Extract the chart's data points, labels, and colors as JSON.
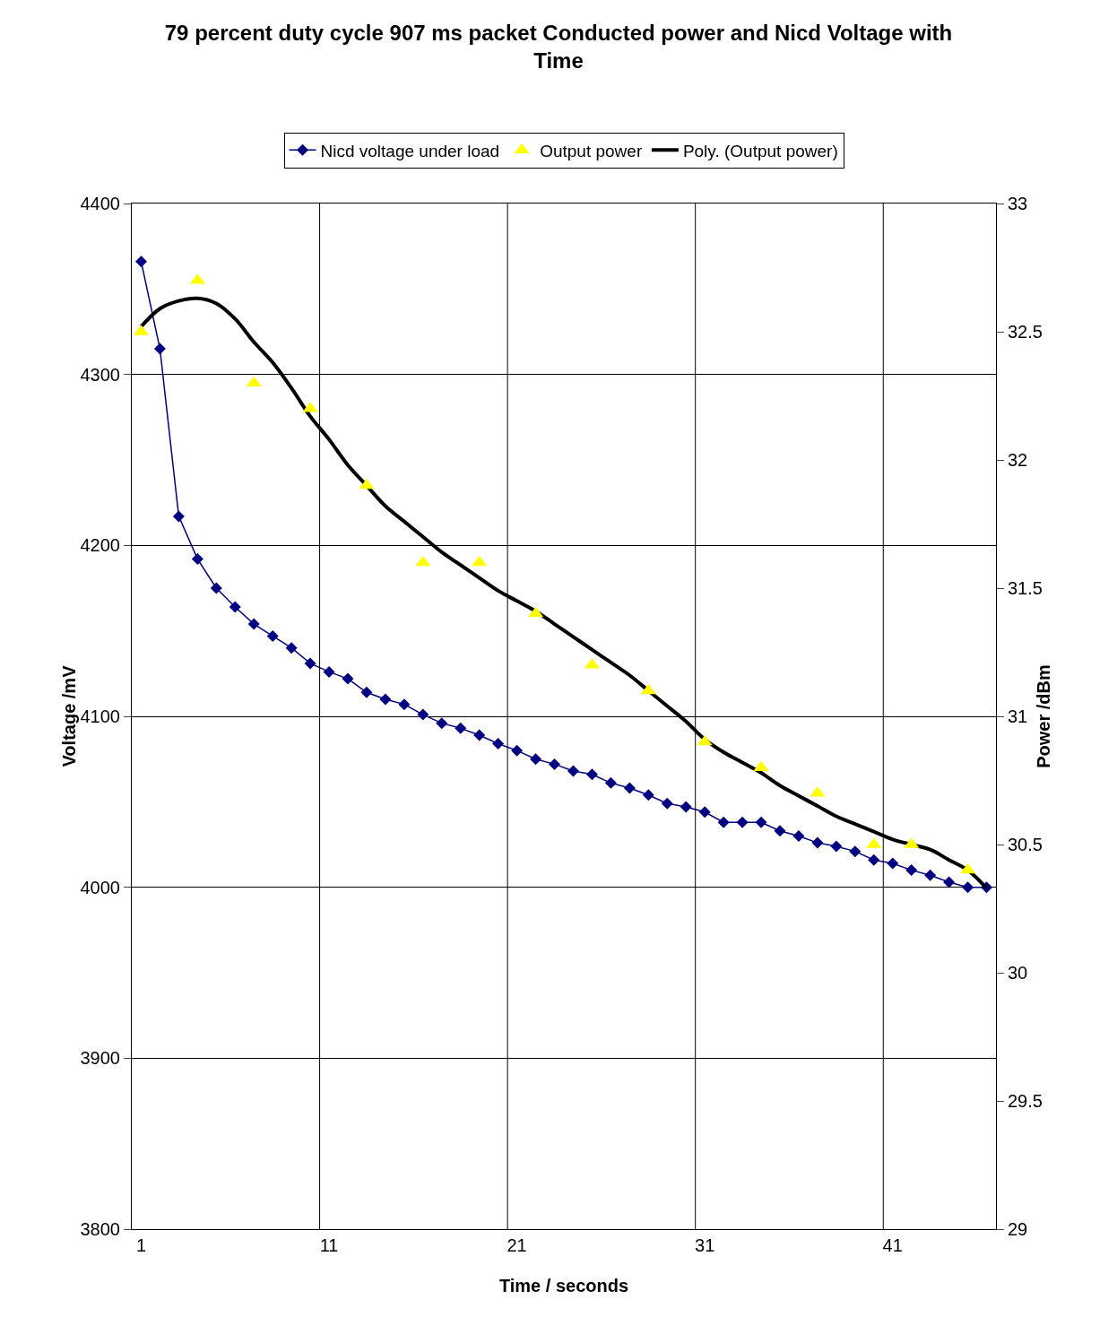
{
  "chart_data": {
    "type": "line",
    "title": "79 percent duty cycle 907 ms packet Conducted power and Nicd Voltage with Time",
    "xlabel": "Time / seconds",
    "ylabel": "Voltage /mV",
    "y2label": "Power /dBm",
    "categories": [
      "1",
      null,
      null,
      null,
      null,
      null,
      null,
      null,
      null,
      null,
      "11",
      null,
      null,
      null,
      null,
      null,
      null,
      null,
      null,
      null,
      "21",
      null,
      null,
      null,
      null,
      null,
      null,
      null,
      null,
      null,
      "31",
      null,
      null,
      null,
      null,
      null,
      null,
      null,
      null,
      null,
      "41",
      null,
      null,
      null,
      null,
      null
    ],
    "ylim": [
      3800,
      4400
    ],
    "yticks": [
      3800,
      3900,
      4000,
      4100,
      4200,
      4300,
      4400
    ],
    "y2lim": [
      29,
      33
    ],
    "y2ticks": [
      29,
      29.5,
      30,
      30.5,
      31,
      31.5,
      32,
      32.5,
      33
    ],
    "grid": true,
    "legend": "top",
    "series": [
      {
        "name": "Nicd voltage under load",
        "color": "#000080",
        "marker": "diamond",
        "values": [
          4366,
          4315,
          4217,
          4192,
          4175,
          4164,
          4154,
          4147,
          4140,
          4131,
          4126,
          4122,
          4114,
          4110,
          4107,
          4101,
          4096,
          4093,
          4089,
          4084,
          4080,
          4075,
          4072,
          4068,
          4066,
          4061,
          4058,
          4054,
          4049,
          4047,
          4044,
          4038,
          4038,
          4038,
          4033,
          4030,
          4026,
          4024,
          4021,
          4016,
          4014,
          4010,
          4007,
          4003,
          4000,
          4000
        ]
      },
      {
        "name": "Output power",
        "type": "scatter",
        "axis": "y2",
        "color": "#ffff00",
        "marker": "triangle",
        "values": [
          32.5,
          null,
          null,
          32.7,
          null,
          null,
          32.3,
          null,
          null,
          32.2,
          null,
          null,
          31.9,
          null,
          null,
          31.6,
          null,
          null,
          31.6,
          null,
          null,
          31.4,
          null,
          null,
          31.2,
          null,
          null,
          31.1,
          null,
          null,
          30.9,
          null,
          null,
          30.8,
          null,
          null,
          30.7,
          null,
          null,
          30.5,
          null,
          30.5,
          null,
          null,
          30.4,
          null
        ]
      },
      {
        "name": "Poly. (Output power)",
        "type": "line",
        "axis": "y2",
        "color": "#000000",
        "marker": "none",
        "values": [
          32.52,
          32.59,
          32.62,
          32.63,
          32.61,
          32.55,
          32.46,
          32.38,
          32.28,
          32.17,
          32.08,
          31.98,
          31.9,
          31.82,
          31.76,
          31.7,
          31.64,
          31.59,
          31.54,
          31.49,
          31.45,
          31.41,
          31.36,
          31.31,
          31.26,
          31.21,
          31.16,
          31.1,
          31.04,
          30.98,
          30.91,
          30.86,
          30.82,
          30.78,
          30.73,
          30.69,
          30.65,
          30.61,
          30.58,
          30.55,
          30.52,
          30.5,
          30.48,
          30.44,
          30.4,
          30.33
        ]
      }
    ]
  }
}
